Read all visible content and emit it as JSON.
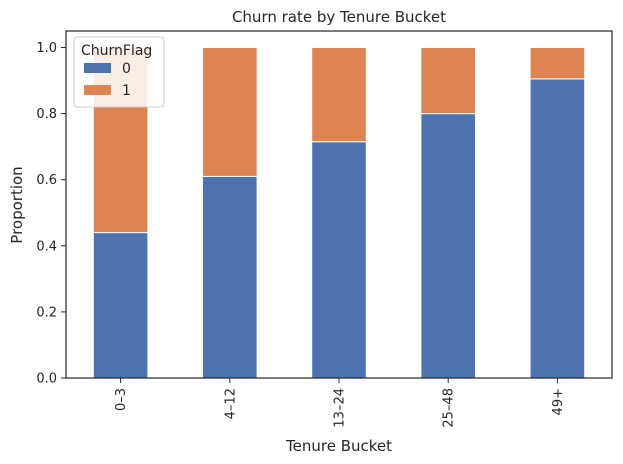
{
  "chart_data": {
    "type": "bar",
    "stacked": true,
    "title": "Churn rate by Tenure Bucket",
    "xlabel": "Tenure Bucket",
    "ylabel": "Proportion",
    "ylim": [
      0,
      1.05
    ],
    "yticks": [
      "0.0",
      "0.2",
      "0.4",
      "0.6",
      "0.8",
      "1.0"
    ],
    "ytick_values": [
      0,
      0.2,
      0.4,
      0.6,
      0.8,
      1.0
    ],
    "categories": [
      "0–3",
      "4–12",
      "13–24",
      "25–48",
      "49+"
    ],
    "legend": {
      "title": "ChurnFlag",
      "placement": "upper-left"
    },
    "series": [
      {
        "name": "0",
        "color": "#4c72b0",
        "values": [
          0.44,
          0.61,
          0.715,
          0.8,
          0.905
        ]
      },
      {
        "name": "1",
        "color": "#dd8452",
        "values": [
          0.56,
          0.39,
          0.285,
          0.2,
          0.095
        ]
      }
    ],
    "grid": false
  }
}
